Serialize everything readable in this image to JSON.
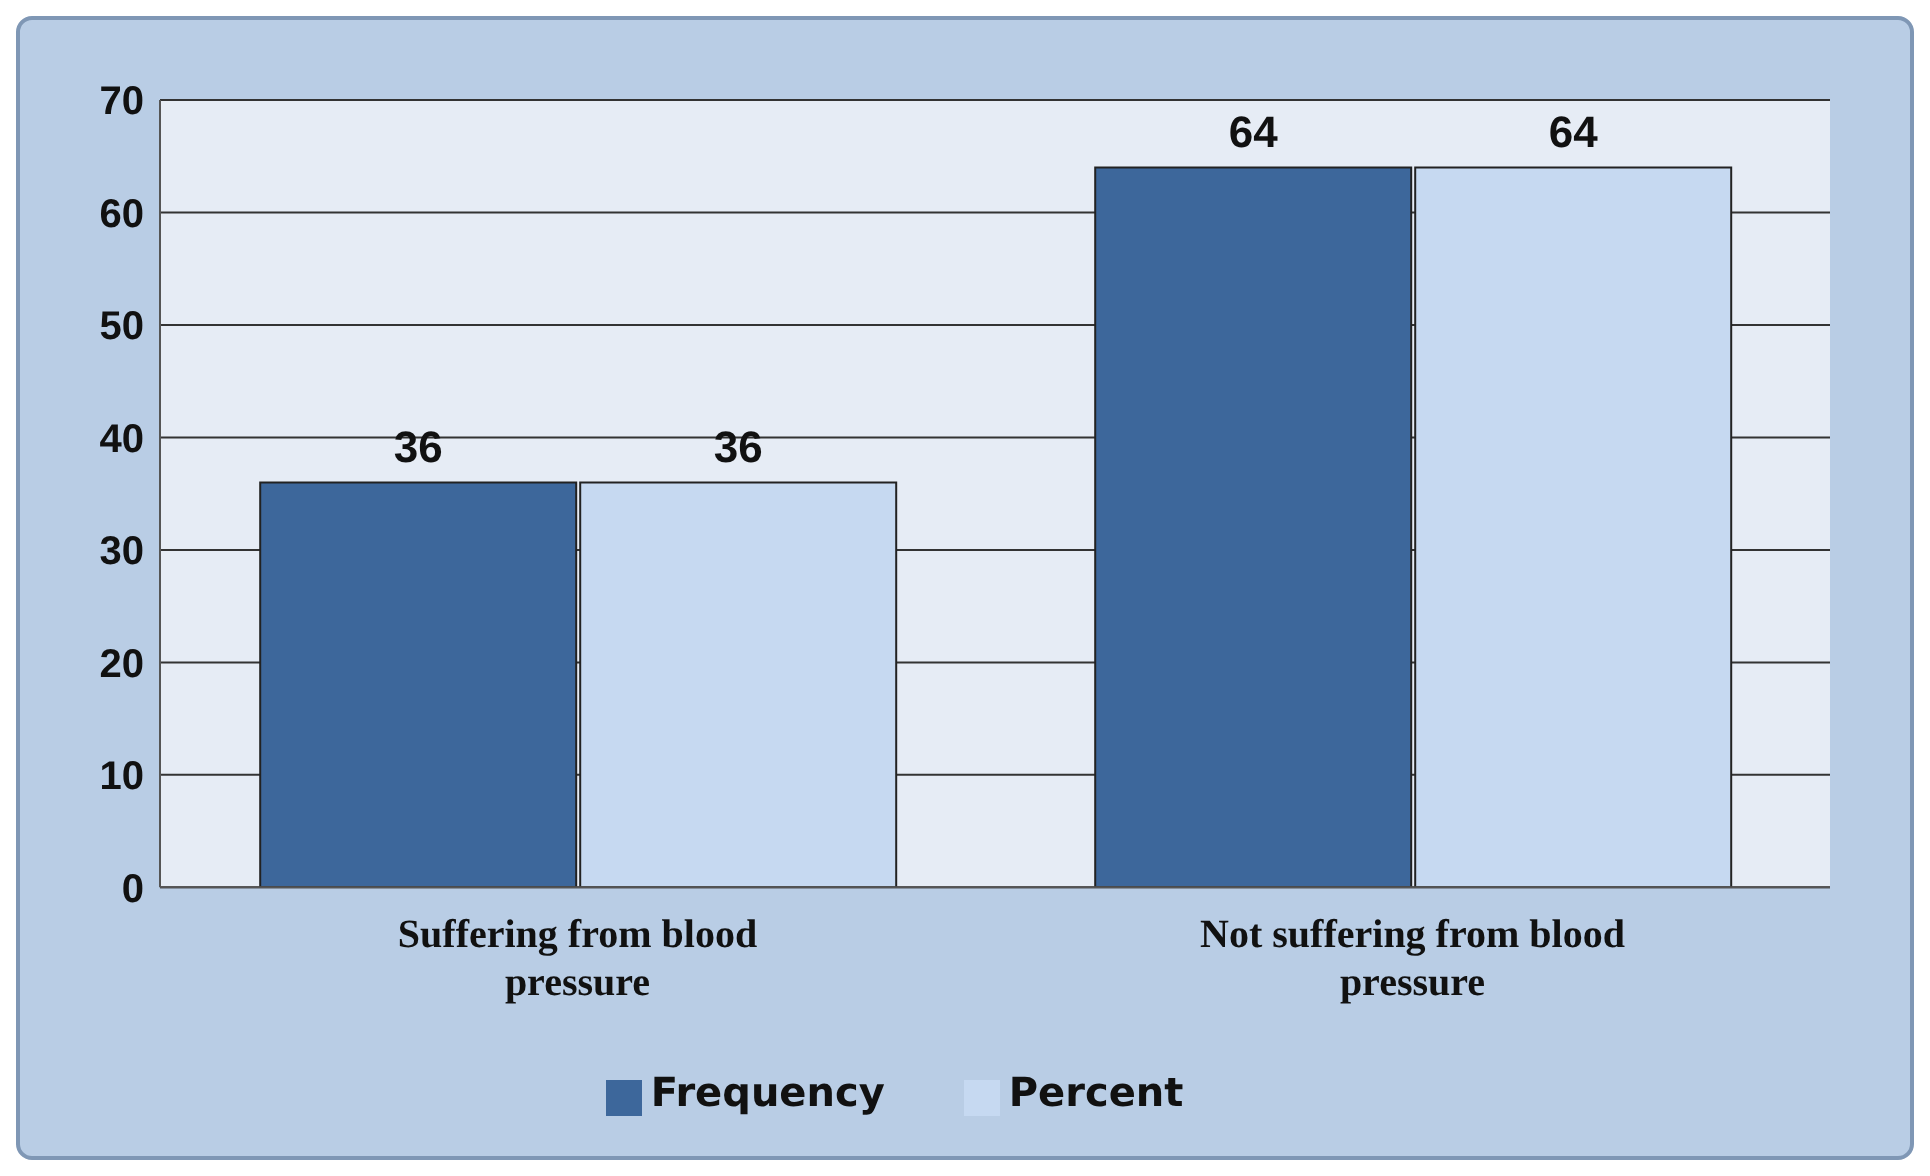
{
  "chart_data": {
    "type": "bar",
    "categories": [
      "Suffering from blood pressure",
      "Not suffering from blood pressure"
    ],
    "series": [
      {
        "name": "Frequency",
        "color": "#3d679b",
        "values": [
          36,
          64
        ]
      },
      {
        "name": "Percent",
        "color": "#c6d9f1",
        "values": [
          36,
          64
        ]
      }
    ],
    "ylim": [
      0,
      70
    ],
    "yticks": [
      0,
      10,
      20,
      30,
      40,
      50,
      60,
      70
    ],
    "grid": "y",
    "legend": "bottom",
    "data_labels": true
  }
}
